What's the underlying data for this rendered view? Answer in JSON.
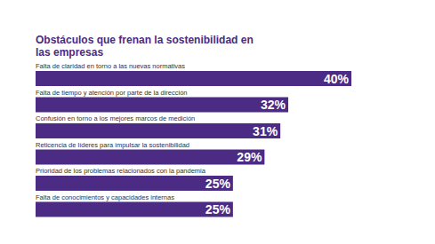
{
  "chart_data": {
    "type": "bar",
    "title": "Obstáculos que frenan la sostenibilidad en las empresas",
    "orientation": "horizontal",
    "categories": [
      "Falta de claridad en torno a las nuevas normativas",
      "Falta de tiempo y atención por parte de la dirección",
      "Confusión en torno a los mejores marcos de medición",
      "Reticencia de líderes para impulsar la sostenibilidad",
      "Prioridad de los problemas relacionados con la pandemia",
      "Falta de conocimientos y capacidades internas"
    ],
    "values": [
      40,
      32,
      31,
      29,
      25,
      25
    ],
    "value_labels": [
      "40%",
      "32%",
      "31%",
      "29%",
      "25%",
      "25%"
    ],
    "color": "#4b2b84",
    "xlim": [
      0,
      40
    ],
    "data_labels": true,
    "tick_labels": false,
    "grid": false
  }
}
